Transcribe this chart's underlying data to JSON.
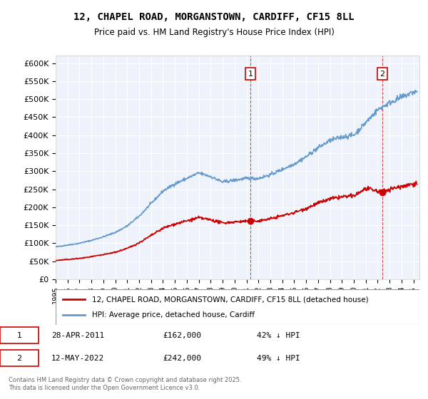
{
  "title": "12, CHAPEL ROAD, MORGANSTOWN, CARDIFF, CF15 8LL",
  "subtitle": "Price paid vs. HM Land Registry's House Price Index (HPI)",
  "background_color": "#eef3fb",
  "plot_bg_color": "#eef3fb",
  "ylabel_ticks": [
    "£0",
    "£50K",
    "£100K",
    "£150K",
    "£200K",
    "£250K",
    "£300K",
    "£350K",
    "£400K",
    "£450K",
    "£500K",
    "£550K",
    "£600K"
  ],
  "ytick_values": [
    0,
    50000,
    100000,
    150000,
    200000,
    250000,
    300000,
    350000,
    400000,
    450000,
    500000,
    550000,
    600000
  ],
  "ylim": [
    0,
    620000
  ],
  "hpi_color": "#6699cc",
  "property_color": "#cc0000",
  "vline_color": "#cc0000",
  "marker1_x": 2011.32,
  "marker1_y": 162000,
  "marker2_x": 2022.37,
  "marker2_y": 242000,
  "marker1_label": "1",
  "marker2_label": "2",
  "annotation1": [
    "1",
    "28-APR-2011",
    "£162,000",
    "42% ↓ HPI"
  ],
  "annotation2": [
    "2",
    "12-MAY-2022",
    "£242,000",
    "49% ↓ HPI"
  ],
  "legend_property": "12, CHAPEL ROAD, MORGANSTOWN, CARDIFF, CF15 8LL (detached house)",
  "legend_hpi": "HPI: Average price, detached house, Cardiff",
  "footer": "Contains HM Land Registry data © Crown copyright and database right 2025.\nThis data is licensed under the Open Government Licence v3.0.",
  "xmin": 1995,
  "xmax": 2025.5
}
